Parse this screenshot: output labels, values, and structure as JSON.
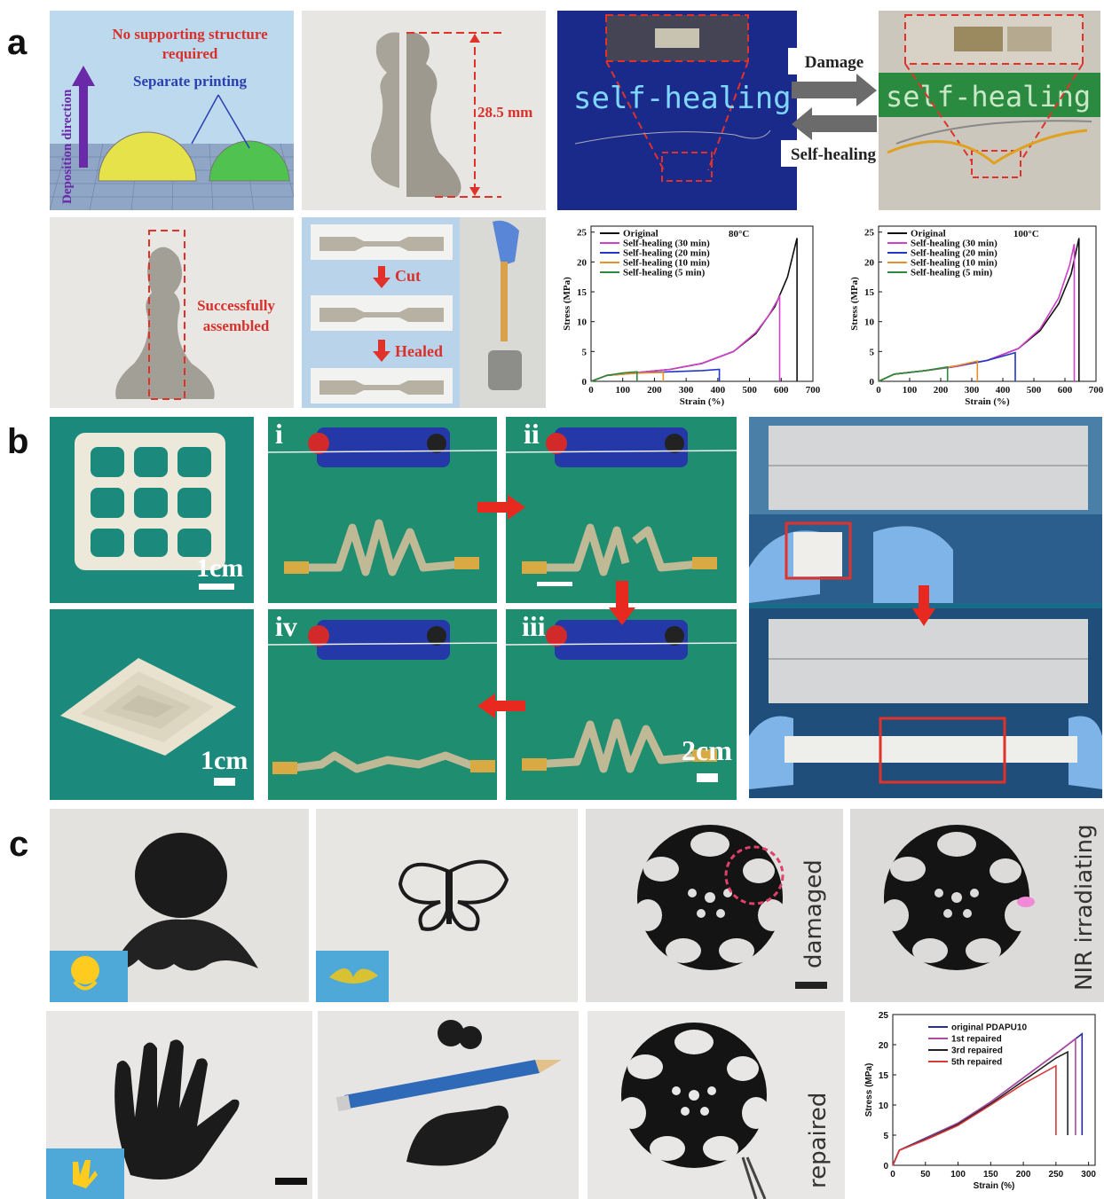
{
  "labels": {
    "a": "a",
    "b": "b",
    "c": "c"
  },
  "panel_a": {
    "no_support": "No supporting structure required",
    "no_support_l1": "No supporting structure",
    "no_support_l2": "required",
    "separate_printing": "Separate printing",
    "deposition_direction": "Deposition direction",
    "height": "28.5 mm",
    "successfully_assembled_l1": "Successfully",
    "successfully_assembled_l2": "assembled",
    "cut": "Cut",
    "healed": "Healed",
    "led_text": "self-healing",
    "damage": "Damage",
    "self_healing": "Self-healing",
    "colors": {
      "sky": "#bcd9ee",
      "red_label": "#d8312b",
      "blue_label": "#2a3fb0",
      "led_bg": "#1a2a8a",
      "led_text": "#7fd6ff"
    }
  },
  "panel_b": {
    "scale_1cm_a": "1cm",
    "scale_1cm_b": "1cm",
    "scale_2cm": "2cm",
    "step_i": "i",
    "step_ii": "ii",
    "step_iii": "iii",
    "step_iv": "iv",
    "colors": {
      "teal": "#1b8a7c",
      "arrow": "#e8291f",
      "ruler": "#cfd2d4"
    }
  },
  "panel_c": {
    "damaged": "damaged",
    "nir_irradiating": "NIR irradiating",
    "repaired": "repaired"
  },
  "chart_data": [
    {
      "type": "line",
      "title": "80°C",
      "xlabel": "Strain (%)",
      "ylabel": "Stress (MPa)",
      "xlim": [
        0,
        700
      ],
      "ylim": [
        0,
        26
      ],
      "xticks": [
        0,
        100,
        200,
        300,
        400,
        500,
        600,
        700
      ],
      "yticks": [
        0,
        5,
        10,
        15,
        20,
        25
      ],
      "legend_position": "top-left",
      "series": [
        {
          "name": "Original",
          "color": "#111111",
          "x": [
            0,
            50,
            150,
            250,
            350,
            450,
            520,
            580,
            620,
            650,
            650
          ],
          "y": [
            0,
            1.0,
            1.5,
            2.0,
            3.0,
            5.0,
            8.0,
            12.5,
            17.5,
            24.0,
            0
          ]
        },
        {
          "name": "Self-healing (30 min)",
          "color": "#d040c8",
          "x": [
            0,
            50,
            150,
            250,
            350,
            450,
            520,
            560,
            595,
            595
          ],
          "y": [
            0,
            1.0,
            1.5,
            2.0,
            3.0,
            5.0,
            8.2,
            11.0,
            14.2,
            0
          ]
        },
        {
          "name": "Self-healing (20 min)",
          "color": "#2436c8",
          "x": [
            0,
            50,
            150,
            250,
            350,
            405,
            405
          ],
          "y": [
            0,
            1.0,
            1.4,
            1.6,
            1.8,
            2.0,
            0
          ]
        },
        {
          "name": "Self-healing (10 min)",
          "color": "#e8912a",
          "x": [
            0,
            50,
            150,
            228,
            228
          ],
          "y": [
            0,
            1.0,
            1.4,
            1.5,
            0
          ]
        },
        {
          "name": "Self-healing (5 min)",
          "color": "#2a8a3a",
          "x": [
            0,
            50,
            100,
            145,
            145
          ],
          "y": [
            0,
            1.0,
            1.4,
            1.6,
            0
          ]
        }
      ]
    },
    {
      "type": "line",
      "title": "100°C",
      "xlabel": "Strain (%)",
      "ylabel": "Stress (MPa)",
      "xlim": [
        0,
        700
      ],
      "ylim": [
        0,
        26
      ],
      "xticks": [
        0,
        100,
        200,
        300,
        400,
        500,
        600,
        700
      ],
      "yticks": [
        0,
        5,
        10,
        15,
        20,
        25
      ],
      "legend_position": "top-left",
      "series": [
        {
          "name": "Original",
          "color": "#111111",
          "x": [
            0,
            50,
            150,
            250,
            350,
            450,
            520,
            580,
            620,
            645,
            645
          ],
          "y": [
            0,
            1.2,
            1.8,
            2.5,
            3.5,
            5.5,
            8.5,
            13.0,
            18.0,
            24.0,
            0
          ]
        },
        {
          "name": "Self-healing (30 min)",
          "color": "#d040c8",
          "x": [
            0,
            50,
            150,
            250,
            350,
            450,
            520,
            580,
            615,
            630,
            630
          ],
          "y": [
            0,
            1.2,
            1.8,
            2.5,
            3.5,
            5.5,
            8.8,
            14.0,
            19.5,
            23.0,
            0
          ]
        },
        {
          "name": "Self-healing (20 min)",
          "color": "#2436c8",
          "x": [
            0,
            50,
            150,
            250,
            350,
            440,
            440
          ],
          "y": [
            0,
            1.2,
            1.8,
            2.6,
            3.5,
            4.8,
            0
          ]
        },
        {
          "name": "Self-healing (10 min)",
          "color": "#e8912a",
          "x": [
            0,
            50,
            150,
            250,
            318,
            318
          ],
          "y": [
            0,
            1.2,
            1.8,
            2.6,
            3.4,
            0
          ]
        },
        {
          "name": "Self-healing (5 min)",
          "color": "#2a8a3a",
          "x": [
            0,
            50,
            150,
            222,
            222
          ],
          "y": [
            0,
            1.2,
            1.8,
            2.4,
            0
          ]
        }
      ]
    },
    {
      "type": "line",
      "xlabel": "Strain (%)",
      "ylabel": "Stress (MPa)",
      "xlim": [
        0,
        310
      ],
      "ylim": [
        0,
        25
      ],
      "xticks": [
        0,
        50,
        100,
        150,
        200,
        250,
        300
      ],
      "yticks": [
        0,
        5,
        10,
        15,
        20,
        25
      ],
      "legend_position": "top-left",
      "series": [
        {
          "name": "original PDAPU10",
          "color": "#2a2a9a",
          "x": [
            0,
            10,
            50,
            100,
            150,
            200,
            250,
            290,
            290
          ],
          "y": [
            0,
            2.5,
            4.5,
            7.0,
            10.5,
            14.5,
            18.5,
            21.8,
            5.0
          ]
        },
        {
          "name": "1st repaired",
          "color": "#b04aa0",
          "x": [
            0,
            10,
            50,
            100,
            150,
            200,
            250,
            280,
            280
          ],
          "y": [
            0,
            2.5,
            4.4,
            7.0,
            10.5,
            14.5,
            18.5,
            21.0,
            5.0
          ]
        },
        {
          "name": "3rd repaired",
          "color": "#222222",
          "x": [
            0,
            10,
            50,
            100,
            150,
            200,
            250,
            268,
            268
          ],
          "y": [
            0,
            2.5,
            4.3,
            6.8,
            10.2,
            14.0,
            17.8,
            18.8,
            5.0
          ]
        },
        {
          "name": "5th repaired",
          "color": "#d83a3a",
          "x": [
            0,
            10,
            50,
            100,
            150,
            200,
            250,
            250
          ],
          "y": [
            0,
            2.5,
            4.2,
            6.6,
            10.0,
            13.5,
            16.5,
            5.0
          ]
        }
      ]
    }
  ]
}
